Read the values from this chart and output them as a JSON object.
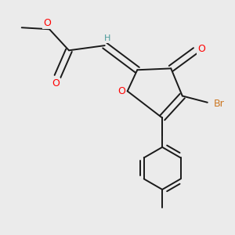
{
  "background_color": "#ebebeb",
  "bond_color": "#1a1a1a",
  "atom_colors": {
    "O": "#ff0000",
    "Br": "#cc7722",
    "H": "#4a9a9a",
    "C": "#1a1a1a"
  },
  "figsize": [
    3.0,
    3.0
  ],
  "dpi": 100
}
